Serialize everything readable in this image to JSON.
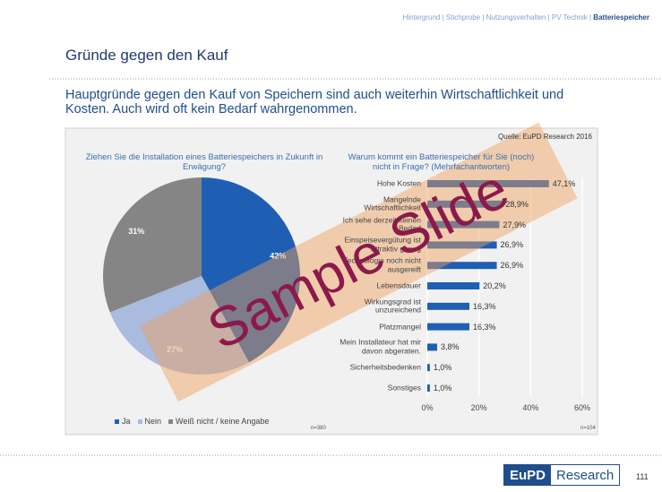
{
  "nav": [
    "Hintergrund | Stichprobe | Nutzungsverhalten | PV Technik |",
    "Batteriespeicher"
  ],
  "title": "Gründe gegen den Kauf",
  "headline": "Hauptgründe gegen den Kauf von Speichern sind auch weiterhin Wirtschaftlichkeit und Kosten. Auch wird oft kein Bedarf wahrgenommen.",
  "source": "Quelle: EuPD Research 2016",
  "watermark": "Sample Slide",
  "logo": [
    "EuPD",
    "Research"
  ],
  "page_number": "111",
  "chart_data": [
    {
      "type": "pie",
      "title": "Ziehen Sie die Installation eines Batteriespeichers in Zukunft in Erwägung?",
      "categories": [
        "Ja",
        "Nein",
        "Weiß nicht / keine Angabe"
      ],
      "values": [
        42,
        27,
        31
      ],
      "value_labels": [
        "42%",
        "27%",
        "31%"
      ],
      "colors": [
        "#1f5fb3",
        "#a9bbdf",
        "#858585"
      ],
      "note": "n=380"
    },
    {
      "type": "hbar",
      "title": "Warum kommt ein Batteriespeicher für Sie (noch) nicht in Frage? (Mehrfachantworten)",
      "categories": [
        "Hohe Kosten",
        "Mangelnde Wirtschaftlichkeit",
        "Ich sehe derzeit keinen Bedarf",
        "Einspeisevergütung ist attraktiv genug",
        "Technologie noch nicht ausgereift",
        "Lebensdauer",
        "Wirkungsgrad ist unzureichend",
        "Platzmangel",
        "Mein Installateur hat mir davon abgeraten.",
        "Sicherheitsbedenken",
        "Sonstiges"
      ],
      "values": [
        47.1,
        28.9,
        27.9,
        26.9,
        26.9,
        20.2,
        16.3,
        16.3,
        3.8,
        1.0,
        1.0
      ],
      "value_labels": [
        "47,1%",
        "28,9%",
        "27,9%",
        "26,9%",
        "26,9%",
        "20,2%",
        "16,3%",
        "16,3%",
        "3,8%",
        "1,0%",
        "1,0%"
      ],
      "color": "#1f5fb3",
      "xlim": [
        0,
        60
      ],
      "xticks": [
        {
          "value": 0,
          "label": "0%"
        },
        {
          "value": 20,
          "label": "20%"
        },
        {
          "value": 40,
          "label": "40%"
        },
        {
          "value": 60,
          "label": "60%"
        }
      ],
      "grid": true,
      "note": "n=104"
    }
  ]
}
